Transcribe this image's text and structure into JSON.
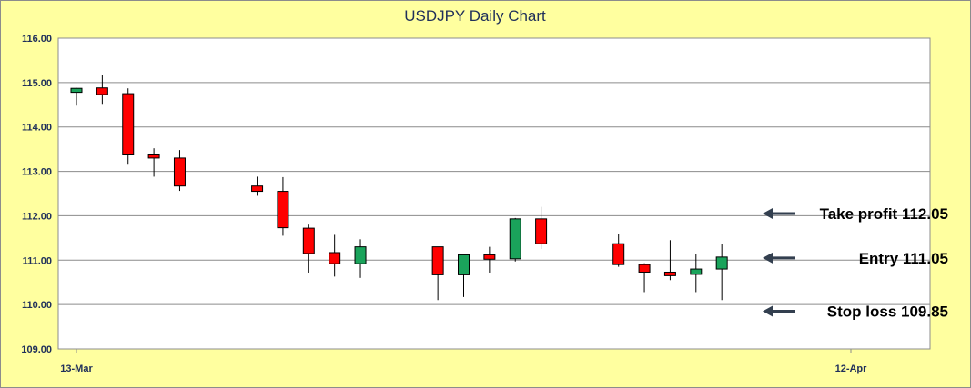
{
  "chart_data": {
    "type": "candlestick",
    "title": "USDJPY Daily Chart",
    "ylim": [
      109.0,
      116.0
    ],
    "y_ticks": [
      "109.00",
      "110.00",
      "111.00",
      "112.00",
      "113.00",
      "114.00",
      "115.00",
      "116.00"
    ],
    "x_ticks": [
      "13-Mar",
      "12-Apr"
    ],
    "grid": "horizontal",
    "colors": {
      "up": "#1aa35b",
      "down": "#ff0000",
      "plot_bg": "#ffffff",
      "chart_bg": "#ffff9f",
      "grid": "#8c8c8c"
    },
    "candles": [
      {
        "date": "2017-03-13",
        "open": 114.78,
        "high": 114.88,
        "low": 114.48,
        "close": 114.87
      },
      {
        "date": "2017-03-14",
        "open": 114.88,
        "high": 115.18,
        "low": 114.5,
        "close": 114.73
      },
      {
        "date": "2017-03-15",
        "open": 114.75,
        "high": 114.87,
        "low": 113.15,
        "close": 113.37
      },
      {
        "date": "2017-03-16",
        "open": 113.37,
        "high": 113.52,
        "low": 112.88,
        "close": 113.3
      },
      {
        "date": "2017-03-17",
        "open": 113.3,
        "high": 113.48,
        "low": 112.56,
        "close": 112.67
      },
      {
        "date": "2017-03-20",
        "open": 112.67,
        "high": 112.88,
        "low": 112.45,
        "close": 112.55
      },
      {
        "date": "2017-03-21",
        "open": 112.55,
        "high": 112.87,
        "low": 111.55,
        "close": 111.73
      },
      {
        "date": "2017-03-22",
        "open": 111.72,
        "high": 111.8,
        "low": 110.72,
        "close": 111.15
      },
      {
        "date": "2017-03-23",
        "open": 111.17,
        "high": 111.57,
        "low": 110.63,
        "close": 110.92
      },
      {
        "date": "2017-03-24",
        "open": 110.92,
        "high": 111.47,
        "low": 110.6,
        "close": 111.3
      },
      {
        "date": "2017-03-27",
        "open": 111.3,
        "high": 111.3,
        "low": 110.1,
        "close": 110.67
      },
      {
        "date": "2017-03-28",
        "open": 110.67,
        "high": 111.15,
        "low": 110.17,
        "close": 111.12
      },
      {
        "date": "2017-03-29",
        "open": 111.12,
        "high": 111.3,
        "low": 110.72,
        "close": 111.02
      },
      {
        "date": "2017-03-30",
        "open": 111.03,
        "high": 111.95,
        "low": 110.97,
        "close": 111.93
      },
      {
        "date": "2017-03-31",
        "open": 111.93,
        "high": 112.2,
        "low": 111.25,
        "close": 111.37
      },
      {
        "date": "2017-04-03",
        "open": 111.37,
        "high": 111.58,
        "low": 110.85,
        "close": 110.9
      },
      {
        "date": "2017-04-04",
        "open": 110.9,
        "high": 110.93,
        "low": 110.28,
        "close": 110.73
      },
      {
        "date": "2017-04-05",
        "open": 110.73,
        "high": 111.45,
        "low": 110.55,
        "close": 110.65
      },
      {
        "date": "2017-04-06",
        "open": 110.68,
        "high": 111.13,
        "low": 110.28,
        "close": 110.8
      },
      {
        "date": "2017-04-07",
        "open": 110.8,
        "high": 111.37,
        "low": 110.1,
        "close": 111.07
      }
    ],
    "annotations": [
      {
        "label": "Take profit 112.05",
        "value": 112.05
      },
      {
        "label": "Entry 111.05",
        "value": 111.05
      },
      {
        "label": "Stop loss 109.85",
        "value": 109.85
      }
    ]
  }
}
